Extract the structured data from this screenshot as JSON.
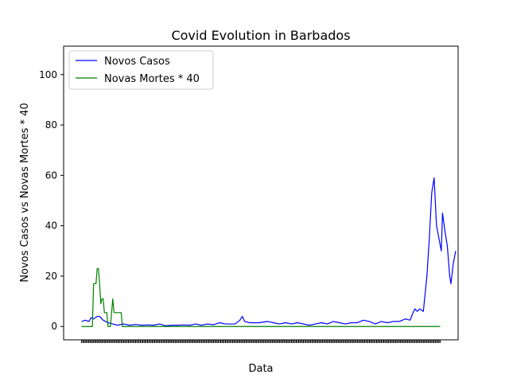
{
  "chart_data": {
    "type": "line",
    "title": "Covid Evolution in Barbados",
    "xlabel": "Data",
    "ylabel": "Novos Casos vs Novas Mortes * 40",
    "ylim": [
      -5.3,
      111.3
    ],
    "xlim": [
      -15,
      314
    ],
    "n_points": 300,
    "yticks": [
      0,
      20,
      40,
      60,
      80,
      100
    ],
    "grid": false,
    "legend_position": "top-left",
    "colors": {
      "novos_casos": "#0000ff",
      "novas_mortes": "#008000"
    },
    "series": [
      {
        "name": "Novos Casos",
        "color": "#0000ff",
        "points": [
          [
            0,
            2
          ],
          [
            3,
            2.5
          ],
          [
            6,
            2
          ],
          [
            8,
            3.5
          ],
          [
            10,
            3
          ],
          [
            13,
            4
          ],
          [
            15,
            4
          ],
          [
            18,
            2.5
          ],
          [
            22,
            1.5
          ],
          [
            26,
            1
          ],
          [
            30,
            0.5
          ],
          [
            35,
            1
          ],
          [
            40,
            0.5
          ],
          [
            45,
            0.8
          ],
          [
            50,
            0.5
          ],
          [
            55,
            0.6
          ],
          [
            60,
            0.5
          ],
          [
            65,
            1
          ],
          [
            70,
            0.3
          ],
          [
            75,
            0.5
          ],
          [
            80,
            0.5
          ],
          [
            85,
            0.6
          ],
          [
            90,
            0.5
          ],
          [
            95,
            1
          ],
          [
            100,
            0.5
          ],
          [
            105,
            1
          ],
          [
            110,
            0.7
          ],
          [
            115,
            1.5
          ],
          [
            120,
            1
          ],
          [
            128,
            1
          ],
          [
            132,
            2.5
          ],
          [
            134,
            4
          ],
          [
            136,
            2
          ],
          [
            140,
            1.5
          ],
          [
            148,
            1.5
          ],
          [
            155,
            2
          ],
          [
            160,
            1.5
          ],
          [
            165,
            1
          ],
          [
            170,
            1.5
          ],
          [
            175,
            1
          ],
          [
            180,
            1.5
          ],
          [
            185,
            1
          ],
          [
            190,
            0.5
          ],
          [
            195,
            1
          ],
          [
            200,
            1.5
          ],
          [
            205,
            1
          ],
          [
            210,
            2
          ],
          [
            215,
            1.5
          ],
          [
            220,
            1
          ],
          [
            225,
            1.5
          ],
          [
            230,
            1.5
          ],
          [
            235,
            2.5
          ],
          [
            240,
            2
          ],
          [
            245,
            1
          ],
          [
            250,
            2
          ],
          [
            255,
            1.5
          ],
          [
            260,
            2
          ],
          [
            265,
            2
          ],
          [
            270,
            3
          ],
          [
            274,
            2.5
          ],
          [
            276,
            5
          ],
          [
            278,
            7
          ],
          [
            280,
            6
          ],
          [
            282,
            7
          ],
          [
            285,
            6
          ],
          [
            288,
            20
          ],
          [
            290,
            35
          ],
          [
            292,
            53
          ],
          [
            294,
            59
          ],
          [
            296,
            40
          ],
          [
            298,
            35
          ],
          [
            300,
            30
          ],
          [
            301,
            45
          ],
          [
            303,
            38
          ],
          [
            305,
            32
          ],
          [
            307,
            20
          ],
          [
            308,
            17
          ],
          [
            310,
            25
          ],
          [
            312,
            30
          ]
        ]
      },
      {
        "name": "Novas Mortes * 40",
        "color": "#008000",
        "points": [
          [
            0,
            0
          ],
          [
            9,
            0
          ],
          [
            10,
            17
          ],
          [
            12,
            17
          ],
          [
            13,
            23
          ],
          [
            14,
            23
          ],
          [
            15,
            17
          ],
          [
            16,
            9
          ],
          [
            17,
            11
          ],
          [
            18,
            11
          ],
          [
            19,
            5.5
          ],
          [
            21,
            5.5
          ],
          [
            22,
            0
          ],
          [
            24,
            0
          ],
          [
            25,
            5.5
          ],
          [
            26,
            11
          ],
          [
            27,
            5.5
          ],
          [
            33,
            5.5
          ],
          [
            34,
            0
          ],
          [
            299,
            0
          ]
        ]
      }
    ]
  }
}
